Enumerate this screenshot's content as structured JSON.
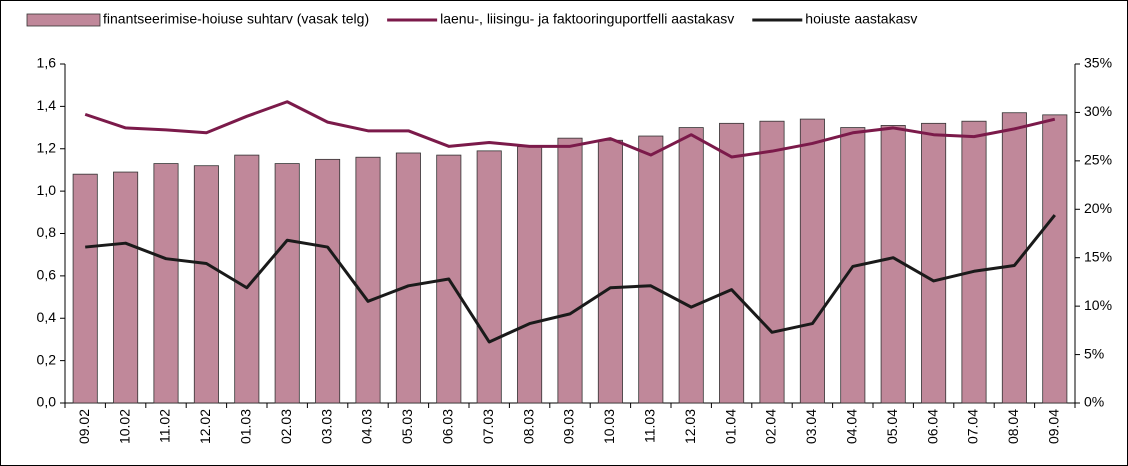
{
  "chart_data": {
    "type": "bar",
    "categories": [
      "09.02",
      "10.02",
      "11.02",
      "12.02",
      "01.03",
      "02.03",
      "03.03",
      "04.03",
      "05.03",
      "06.03",
      "07.03",
      "08.03",
      "09.03",
      "10.03",
      "11.03",
      "12.03",
      "01.04",
      "02.04",
      "03.04",
      "04.04",
      "05.04",
      "06.04",
      "07.04",
      "08.04",
      "09.04"
    ],
    "series": [
      {
        "name": "finantseerimise-hoiuse suhtarv (vasak telg)",
        "type": "bar",
        "color": "#c0889a",
        "values": [
          1.08,
          1.09,
          1.13,
          1.12,
          1.17,
          1.13,
          1.15,
          1.16,
          1.18,
          1.17,
          1.19,
          1.21,
          1.25,
          1.24,
          1.26,
          1.3,
          1.32,
          1.33,
          1.34,
          1.3,
          1.31,
          1.32,
          1.33,
          1.37,
          1.36
        ]
      },
      {
        "name": "laenu-, liisingu- ja faktooringuportfelli aastakasv",
        "type": "line",
        "axis": "y2",
        "color": "#7b1a4a",
        "values": [
          29.8,
          28.4,
          28.2,
          27.9,
          29.6,
          31.1,
          29.0,
          28.1,
          28.1,
          26.5,
          26.9,
          26.5,
          26.5,
          27.3,
          25.6,
          27.7,
          25.4,
          26.0,
          26.8,
          27.9,
          28.4,
          27.7,
          27.5,
          28.3,
          29.3
        ]
      },
      {
        "name": "hoiuste aastakasv",
        "type": "line",
        "axis": "y2",
        "color": "#1a1a1a",
        "values": [
          16.1,
          16.5,
          14.9,
          14.4,
          11.9,
          16.8,
          16.1,
          10.5,
          12.1,
          12.8,
          6.3,
          8.2,
          9.2,
          11.9,
          12.1,
          9.9,
          11.7,
          7.3,
          8.2,
          14.1,
          15.0,
          12.6,
          13.6,
          14.2,
          19.4
        ]
      }
    ],
    "ylim": [
      0,
      1.6
    ],
    "yticks": [
      {
        "value": 0,
        "label": "0,0"
      },
      {
        "value": 0.2,
        "label": "0,2"
      },
      {
        "value": 0.4,
        "label": "0,4"
      },
      {
        "value": 0.6,
        "label": "0,6"
      },
      {
        "value": 0.8,
        "label": "0,8"
      },
      {
        "value": 1.0,
        "label": "1,0"
      },
      {
        "value": 1.2,
        "label": "1,2"
      },
      {
        "value": 1.4,
        "label": "1,4"
      },
      {
        "value": 1.6,
        "label": "1,6"
      }
    ],
    "y2lim": [
      0,
      35
    ],
    "y2ticks": [
      {
        "value": 0,
        "label": "0%"
      },
      {
        "value": 5,
        "label": "5%"
      },
      {
        "value": 10,
        "label": "10%"
      },
      {
        "value": 15,
        "label": "15%"
      },
      {
        "value": 20,
        "label": "20%"
      },
      {
        "value": 25,
        "label": "25%"
      },
      {
        "value": 30,
        "label": "30%"
      },
      {
        "value": 35,
        "label": "35%"
      }
    ]
  }
}
